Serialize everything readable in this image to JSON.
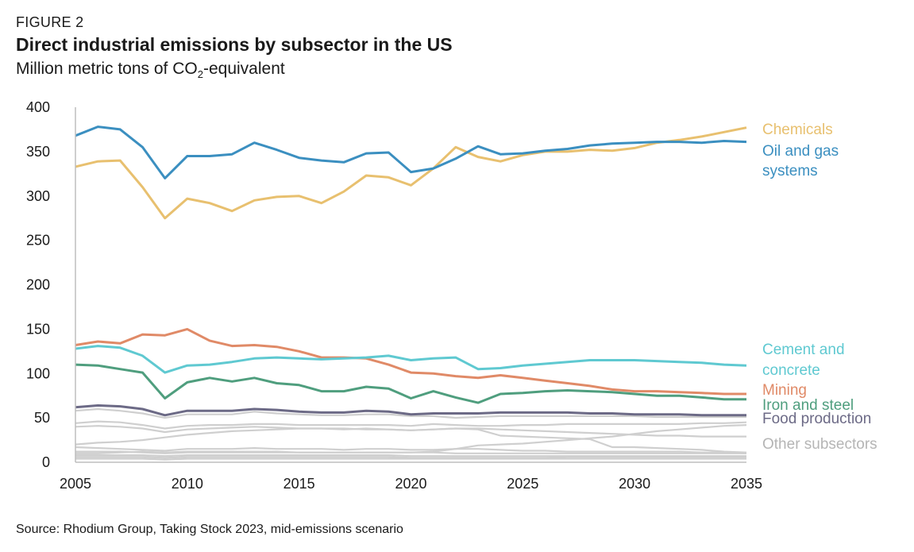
{
  "figure_label": "FIGURE 2",
  "subtitle_pre": "Million metric tons of CO",
  "subtitle_sub": "2",
  "subtitle_post": "-equivalent",
  "source": "Source: Rhodium Group, Taking Stock 2023, mid-emissions scenario",
  "chart_data": {
    "type": "line",
    "title": "Direct industrial emissions by subsector in the US",
    "xlim": [
      2005,
      2035
    ],
    "ylim": [
      0,
      400
    ],
    "x_ticks": [
      2005,
      2010,
      2015,
      2020,
      2025,
      2030,
      2035
    ],
    "y_ticks": [
      0,
      50,
      100,
      150,
      200,
      250,
      300,
      350,
      400
    ],
    "grid": false,
    "legend": "right (direct line labels)",
    "x": [
      2005,
      2006,
      2007,
      2008,
      2009,
      2010,
      2011,
      2012,
      2013,
      2014,
      2015,
      2016,
      2017,
      2018,
      2019,
      2020,
      2021,
      2022,
      2023,
      2024,
      2025,
      2026,
      2027,
      2028,
      2029,
      2030,
      2031,
      2032,
      2033,
      2034,
      2035
    ],
    "series": [
      {
        "name": "Chemicals",
        "color": "#e8c06f",
        "label_lines": [
          "Chemicals"
        ],
        "values": [
          333,
          339,
          340,
          310,
          275,
          297,
          292,
          283,
          295,
          299,
          300,
          292,
          305,
          323,
          321,
          312,
          331,
          355,
          344,
          339,
          346,
          350,
          350,
          352,
          351,
          354,
          360,
          363,
          367,
          372,
          377
        ]
      },
      {
        "name": "Oil and gas systems",
        "color": "#3b8fc0",
        "label_lines": [
          "Oil and gas",
          "systems"
        ],
        "values": [
          368,
          378,
          375,
          355,
          320,
          345,
          345,
          347,
          360,
          352,
          343,
          340,
          338,
          348,
          349,
          327,
          331,
          342,
          356,
          347,
          348,
          351,
          353,
          357,
          359,
          360,
          361,
          361,
          360,
          362,
          361
        ]
      },
      {
        "name": "Cement and concrete",
        "color": "#5fc9d1",
        "label_lines": [
          "Cement and",
          "concrete"
        ],
        "values": [
          128,
          131,
          129,
          120,
          101,
          109,
          110,
          113,
          117,
          118,
          117,
          116,
          117,
          118,
          120,
          115,
          117,
          118,
          105,
          106,
          109,
          111,
          113,
          115,
          115,
          115,
          114,
          113,
          112,
          110,
          109
        ]
      },
      {
        "name": "Mining",
        "color": "#e08a67",
        "label_lines": [
          "Mining"
        ],
        "values": [
          132,
          136,
          134,
          144,
          143,
          150,
          137,
          131,
          132,
          130,
          125,
          118,
          118,
          117,
          110,
          101,
          100,
          97,
          95,
          98,
          95,
          92,
          89,
          86,
          82,
          80,
          80,
          79,
          78,
          77,
          77
        ]
      },
      {
        "name": "Iron and steel",
        "color": "#4f9e7e",
        "label_lines": [
          "Iron and steel"
        ],
        "values": [
          110,
          109,
          105,
          101,
          72,
          90,
          95,
          91,
          95,
          89,
          87,
          80,
          80,
          85,
          83,
          72,
          80,
          73,
          67,
          77,
          78,
          80,
          81,
          80,
          79,
          77,
          75,
          75,
          73,
          71,
          71
        ]
      },
      {
        "name": "Food production",
        "color": "#6c6a86",
        "label_lines": [
          "Food production"
        ],
        "values": [
          62,
          64,
          63,
          60,
          53,
          58,
          58,
          58,
          60,
          59,
          57,
          56,
          56,
          58,
          57,
          54,
          55,
          55,
          55,
          56,
          56,
          56,
          56,
          55,
          55,
          54,
          54,
          54,
          53,
          53,
          53
        ]
      },
      {
        "name": "Other subsectors",
        "color": "#c8c8c8",
        "label_lines": [
          "Other subsectors"
        ],
        "values": null
      }
    ],
    "other_subsectors": [
      [
        58,
        60,
        58,
        55,
        50,
        54,
        54,
        54,
        57,
        55,
        54,
        53,
        53,
        54,
        54,
        52,
        52,
        50,
        51,
        52,
        52,
        52,
        52,
        52,
        52,
        52,
        51,
        51,
        51,
        51,
        51
      ],
      [
        44,
        46,
        45,
        42,
        38,
        41,
        42,
        42,
        43,
        43,
        42,
        42,
        42,
        42,
        42,
        41,
        43,
        42,
        41,
        41,
        42,
        42,
        43,
        43,
        43,
        43,
        43,
        43,
        44,
        44,
        45
      ],
      [
        40,
        41,
        40,
        38,
        34,
        37,
        38,
        39,
        40,
        39,
        38,
        38,
        37,
        38,
        37,
        36,
        37,
        38,
        37,
        30,
        29,
        28,
        27,
        26,
        17,
        17,
        16,
        15,
        14,
        12,
        11
      ],
      [
        20,
        22,
        23,
        25,
        28,
        31,
        33,
        35,
        36,
        37,
        38,
        38,
        38,
        37,
        37,
        36,
        37,
        38,
        38,
        37,
        36,
        35,
        34,
        33,
        32,
        31,
        30,
        30,
        29,
        29,
        29
      ],
      [
        12,
        12,
        12,
        11,
        10,
        11,
        11,
        11,
        11,
        11,
        11,
        11,
        11,
        11,
        11,
        11,
        12,
        15,
        19,
        20,
        21,
        23,
        25,
        27,
        29,
        32,
        35,
        37,
        39,
        41,
        42
      ],
      [
        17,
        16,
        15,
        14,
        13,
        15,
        15,
        15,
        16,
        15,
        15,
        15,
        14,
        15,
        15,
        14,
        14,
        15,
        15,
        14,
        13,
        13,
        12,
        12,
        12,
        12,
        12,
        12,
        11,
        11,
        10
      ],
      [
        10,
        10,
        11,
        12,
        11,
        12,
        12,
        12,
        12,
        12,
        11,
        11,
        11,
        11,
        11,
        11,
        11,
        10,
        10,
        10,
        10,
        10,
        10,
        10,
        10,
        10,
        10,
        10,
        10,
        10,
        10
      ],
      [
        8,
        8,
        8,
        8,
        7,
        8,
        8,
        8,
        8,
        8,
        8,
        8,
        8,
        8,
        8,
        7,
        7,
        7,
        7,
        7,
        7,
        7,
        7,
        7,
        7,
        7,
        7,
        7,
        7,
        7,
        7
      ],
      [
        6,
        6,
        6,
        6,
        5,
        6,
        6,
        6,
        6,
        6,
        6,
        6,
        6,
        6,
        6,
        5,
        5,
        5,
        5,
        5,
        5,
        5,
        6,
        6,
        6,
        6,
        6,
        6,
        6,
        6,
        6
      ],
      [
        4,
        4,
        4,
        4,
        3,
        4,
        4,
        4,
        4,
        4,
        4,
        4,
        4,
        4,
        4,
        4,
        4,
        4,
        4,
        4,
        4,
        4,
        4,
        4,
        4,
        4,
        4,
        4,
        4,
        4,
        4
      ]
    ]
  }
}
